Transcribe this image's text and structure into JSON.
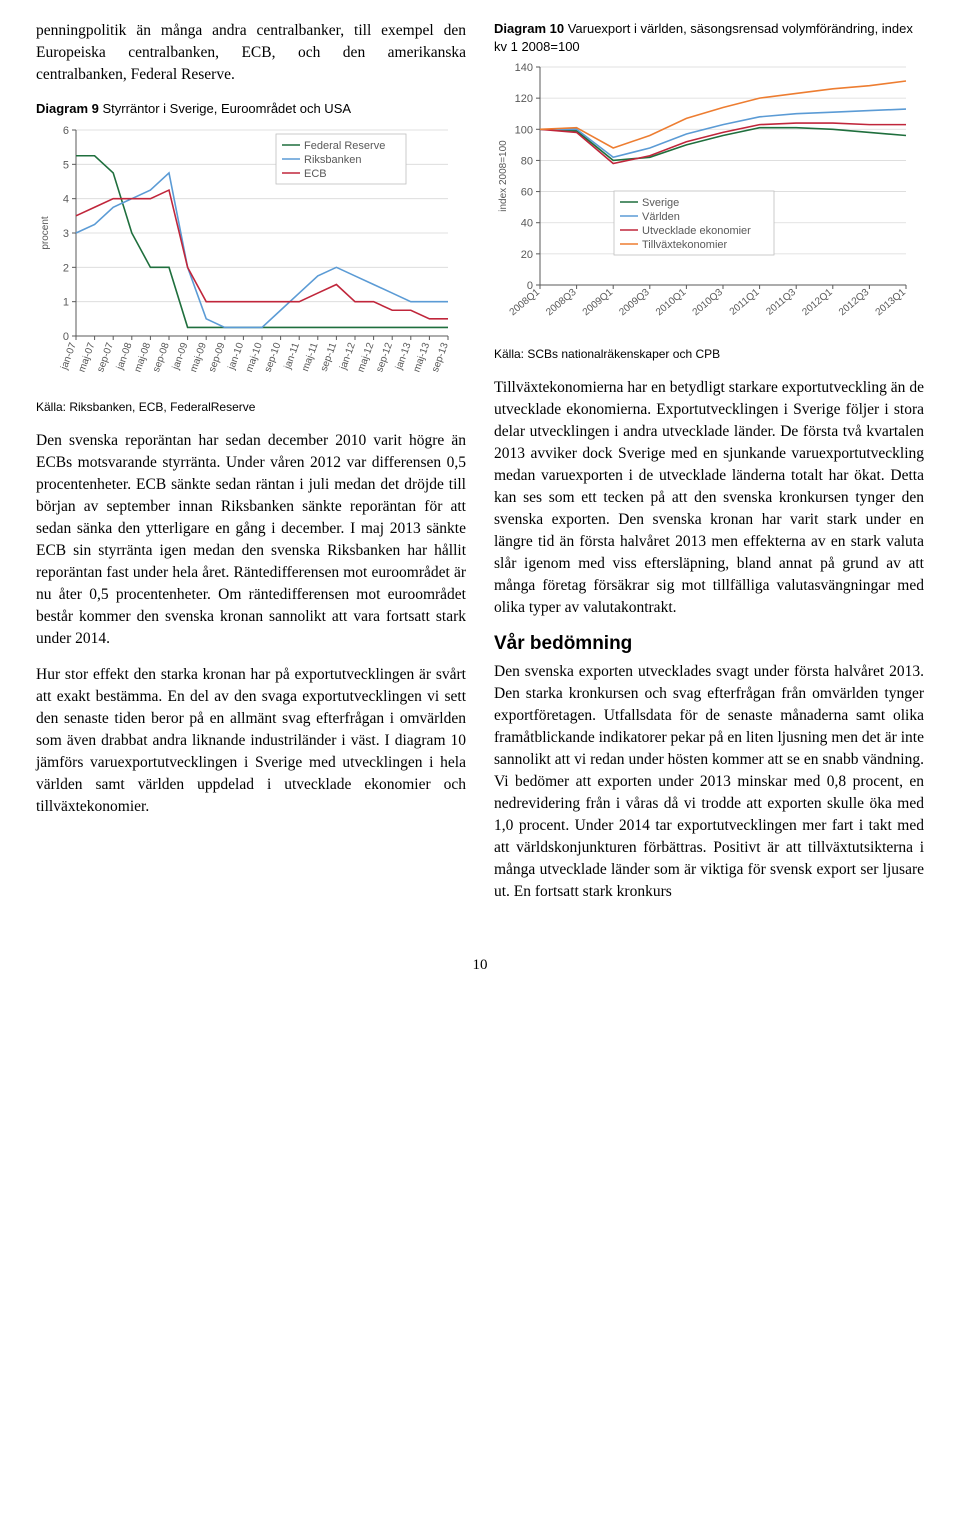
{
  "left": {
    "para1": "penningpolitik än många andra centralbanker, till exempel den Europeiska centralbanken, ECB, och den amerikanska centralbanken, Federal Reserve.",
    "chart9": {
      "title_prefix": "Diagram 9",
      "title_rest": " Styrräntor i Sverige, Euroområdet och USA",
      "ylabel": "procent",
      "ylim": [
        0,
        6
      ],
      "ytick_step": 1,
      "xcats": [
        "jan-07",
        "maj-07",
        "sep-07",
        "jan-08",
        "maj-08",
        "sep-08",
        "jan-09",
        "maj-09",
        "sep-09",
        "jan-10",
        "maj-10",
        "sep-10",
        "jan-11",
        "maj-11",
        "sep-11",
        "jan-12",
        "maj-12",
        "sep-12",
        "jan-13",
        "maj-13",
        "sep-13"
      ],
      "series": [
        {
          "name": "Federal Reserve",
          "color": "#1f6f3d",
          "values": [
            5.25,
            5.25,
            4.75,
            3.0,
            2.0,
            2.0,
            0.25,
            0.25,
            0.25,
            0.25,
            0.25,
            0.25,
            0.25,
            0.25,
            0.25,
            0.25,
            0.25,
            0.25,
            0.25,
            0.25,
            0.25
          ]
        },
        {
          "name": "Riksbanken",
          "color": "#5b9bd5",
          "values": [
            3.0,
            3.25,
            3.75,
            4.0,
            4.25,
            4.75,
            2.0,
            0.5,
            0.25,
            0.25,
            0.25,
            0.75,
            1.25,
            1.75,
            2.0,
            1.75,
            1.5,
            1.25,
            1.0,
            1.0,
            1.0
          ]
        },
        {
          "name": "ECB",
          "color": "#c0263b",
          "values": [
            3.5,
            3.75,
            4.0,
            4.0,
            4.0,
            4.25,
            2.0,
            1.0,
            1.0,
            1.0,
            1.0,
            1.0,
            1.0,
            1.25,
            1.5,
            1.0,
            1.0,
            0.75,
            0.75,
            0.5,
            0.5
          ]
        }
      ],
      "grid_color": "#d9d9d9",
      "tick_color": "#595959",
      "line_width": 1.6
    },
    "source9": "Källa: Riksbanken, ECB, FederalReserve",
    "para2": "Den svenska reporäntan har sedan december 2010 varit högre än ECBs motsvarande styrränta. Under våren 2012 var differensen 0,5 procentenheter. ECB sänkte sedan räntan i juli medan det dröjde till början av september innan Riksbanken sänkte reporäntan för att sedan sänka den ytterligare en gång i december. I maj 2013 sänkte ECB sin styrränta igen medan den svenska Riksbanken har hållit reporäntan fast under hela året. Ränte­differensen mot euroområdet är nu åter 0,5 procentenheter. Om räntedifferensen mot euroområdet består kommer den svenska kronan sannolikt att vara fortsatt stark under 2014.",
    "para3": "Hur stor effekt den starka kronan har på exportutvecklingen är svårt att exakt bestämma. En del av den svaga export­utvecklingen vi sett den senaste tiden beror på en allmänt svag efterfrågan i omvärlden som även drabbat andra liknande industriländer i väst. I diagram 10 jämförs varuexport­utvecklingen i Sverige med utvecklingen i hela världen samt världen uppdelad i utvecklade ekonomier och tillväxtekonomier."
  },
  "right": {
    "chart10": {
      "title_prefix": "Diagram 10",
      "title_rest": " Varuexport i världen, säsongsrensad volymförändring, index kv 1 2008=100",
      "ylabel": "index 2008=100",
      "ylim": [
        0,
        140
      ],
      "ytick_step": 20,
      "xcats": [
        "2008Q1",
        "2008Q3",
        "2009Q1",
        "2009Q3",
        "2010Q1",
        "2010Q3",
        "2011Q1",
        "2011Q3",
        "2012Q1",
        "2012Q3",
        "2013Q1"
      ],
      "series": [
        {
          "name": "Sverige",
          "color": "#1f6f3d",
          "values": [
            100,
            99,
            80,
            82,
            90,
            96,
            101,
            101,
            100,
            98,
            96
          ]
        },
        {
          "name": "Världen",
          "color": "#5b9bd5",
          "values": [
            100,
            100,
            82,
            88,
            97,
            103,
            108,
            110,
            111,
            112,
            113
          ]
        },
        {
          "name": "Utvecklade ekonomier",
          "color": "#c0263b",
          "values": [
            100,
            98,
            78,
            83,
            92,
            98,
            103,
            104,
            104,
            103,
            103
          ]
        },
        {
          "name": "Tillväxtekonomier",
          "color": "#ed7d31",
          "values": [
            100,
            101,
            88,
            96,
            107,
            114,
            120,
            123,
            126,
            128,
            131
          ]
        }
      ],
      "grid_color": "#d9d9d9",
      "tick_color": "#595959",
      "line_width": 1.6
    },
    "source10": "Källa: SCBs nationalräkenskaper och CPB",
    "para1": "Tillväxtekonomierna har en betydligt starkare exportutveckling än de utvecklade ekonomierna. Exportutvecklingen i Sverige följer i stora delar utvecklingen i andra utvecklade länder. De första två kvartalen 2013 avviker dock Sverige med en sjunkande varuexportutveckling medan varuexporten i de utvecklade länderna totalt har ökat. Detta kan ses som ett tecken på att den svenska kronkursen tynger den svenska exporten. Den svenska kronan har varit stark under en längre tid än första halvåret 2013 men effekterna av en stark valuta slår igenom med viss eftersläpning, bland annat på grund av att många företag försäkrar sig mot tillfälliga valutasvängningar med olika typer av valutakontrakt.",
    "heading": "Vår bedömning",
    "para2": "Den svenska exporten utvecklades svagt under första halvåret 2013. Den starka kronkursen och svag efterfrågan från omvärlden tynger exportföretagen. Utfallsdata för de senaste månaderna samt olika framåtblickande indikatorer pekar på en liten ljusning men det är inte sannolikt att vi redan under hösten kommer att se en snabb vändning. Vi bedömer att exporten under 2013 minskar med 0,8 procent, en nedrevidering från i våras då vi trodde att exporten skulle öka med 1,0 procent. Under 2014 tar exportutvecklingen mer fart i takt med att världskonjunkturen förbättras. Positivt är att tillväxtutsikterna i många utvecklade länder som är viktiga för svensk export ser ljusare ut. En fortsatt stark kronkurs"
  },
  "page_number": "10"
}
